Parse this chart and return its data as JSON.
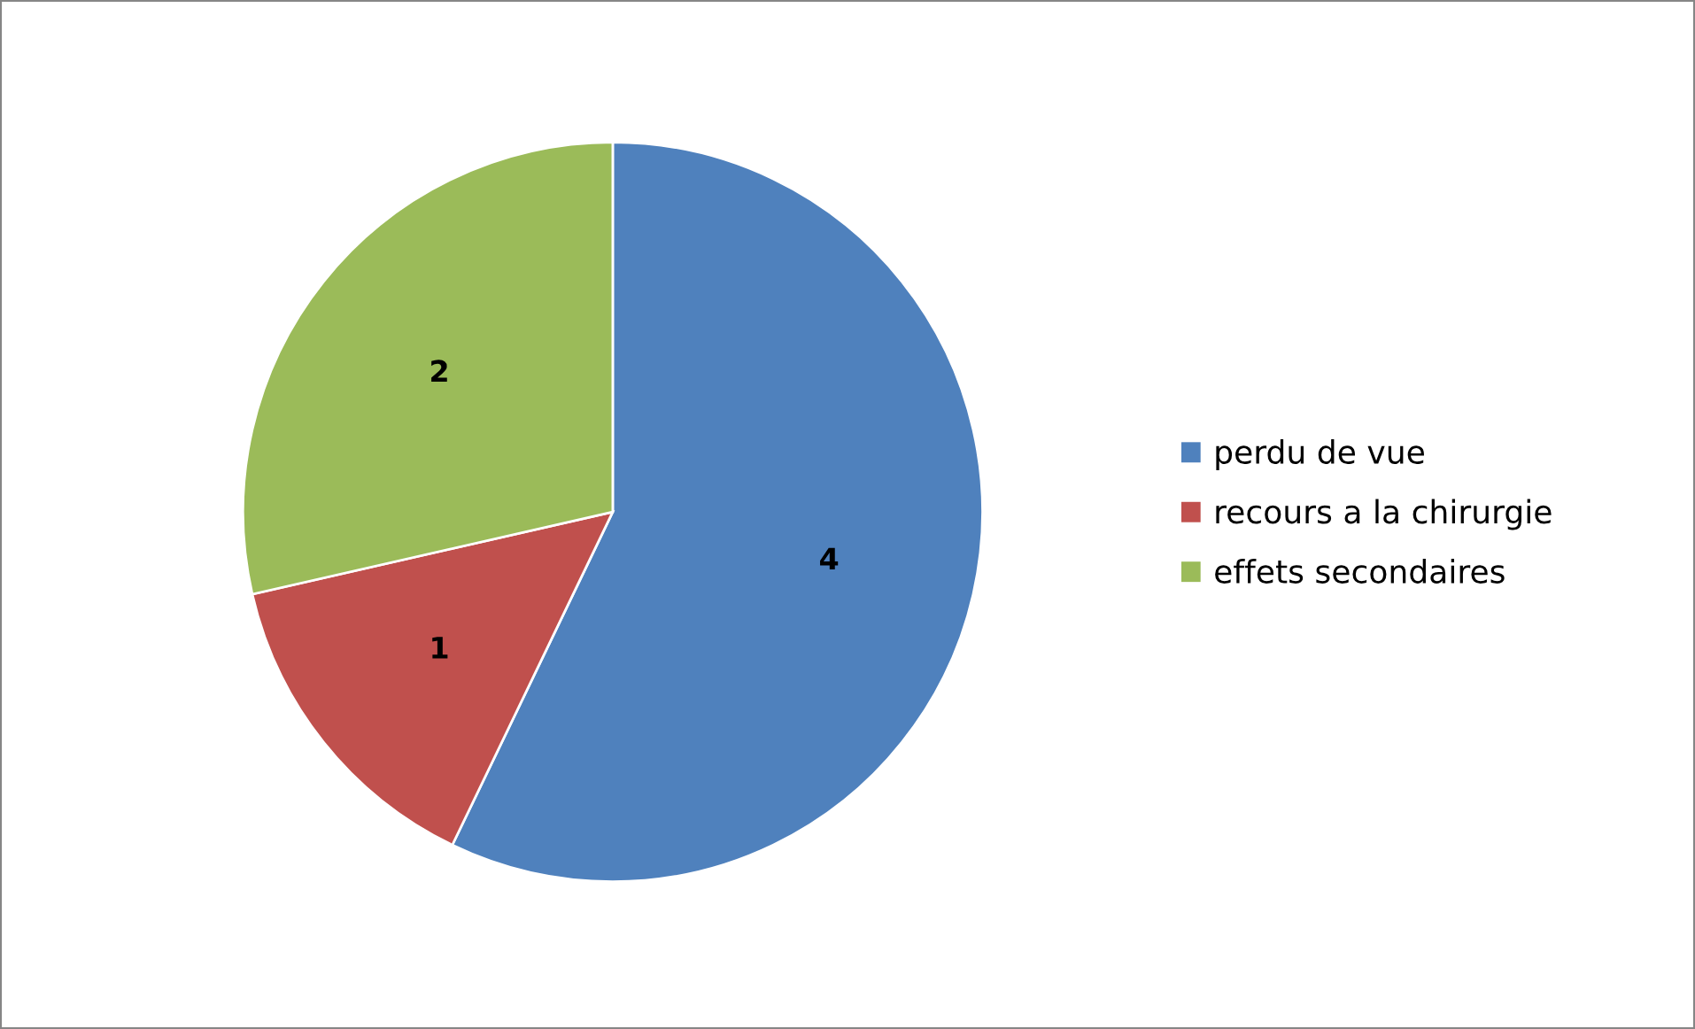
{
  "chart_data": {
    "type": "pie",
    "categories": [
      "perdu de vue",
      "recours a la chirurgie",
      "effets secondaires"
    ],
    "values": [
      4,
      1,
      2
    ],
    "colors": [
      "#4f81bd",
      "#c0504d",
      "#9bbb59"
    ],
    "data_labels": true,
    "legend": "right"
  }
}
